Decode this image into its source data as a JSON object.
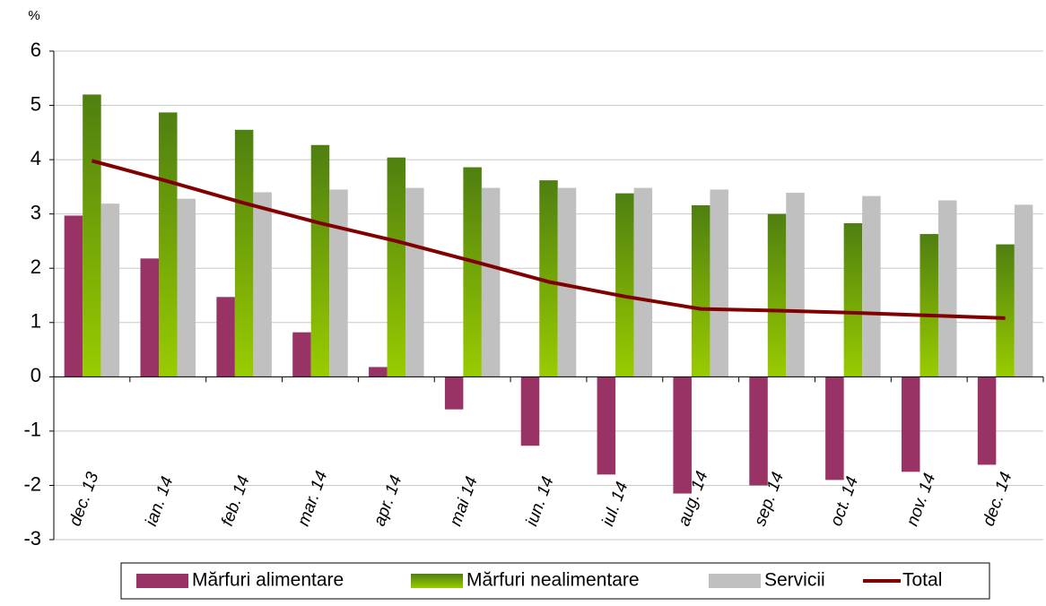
{
  "chart_data": {
    "type": "bar",
    "y_label": "%",
    "categories": [
      "dec. 13",
      "ian. 14",
      "feb. 14",
      "mar. 14",
      "apr. 14",
      "mai 14",
      "iun. 14",
      "iul. 14",
      "aug. 14",
      "sep. 14",
      "oct. 14",
      "nov. 14",
      "dec. 14"
    ],
    "series": [
      {
        "name": "Mărfuri alimentare",
        "color": "#993366",
        "values": [
          2.97,
          2.18,
          1.47,
          0.82,
          0.18,
          -0.6,
          -1.27,
          -1.8,
          -2.15,
          -2.0,
          -1.9,
          -1.75,
          -1.62
        ]
      },
      {
        "name": "Mărfuri nealimentare",
        "color": "#4f7f10",
        "values": [
          5.2,
          4.87,
          4.55,
          4.27,
          4.04,
          3.86,
          3.62,
          3.38,
          3.16,
          3.0,
          2.83,
          2.63,
          2.44
        ]
      },
      {
        "name": "Servicii",
        "color": "#c0c0c0",
        "values": [
          3.19,
          3.28,
          3.4,
          3.45,
          3.48,
          3.48,
          3.48,
          3.48,
          3.45,
          3.39,
          3.33,
          3.25,
          3.17
        ]
      },
      {
        "name": "Total",
        "type": "line",
        "color": "#800000",
        "values": [
          3.98,
          3.6,
          3.2,
          2.83,
          2.5,
          2.13,
          1.75,
          1.48,
          1.25,
          1.22,
          1.18,
          1.13,
          1.08
        ]
      }
    ],
    "ylim": [
      -3,
      6
    ],
    "yticks": [
      -3,
      -2,
      -1,
      0,
      1,
      2,
      3,
      4,
      5,
      6
    ],
    "grid": true
  }
}
